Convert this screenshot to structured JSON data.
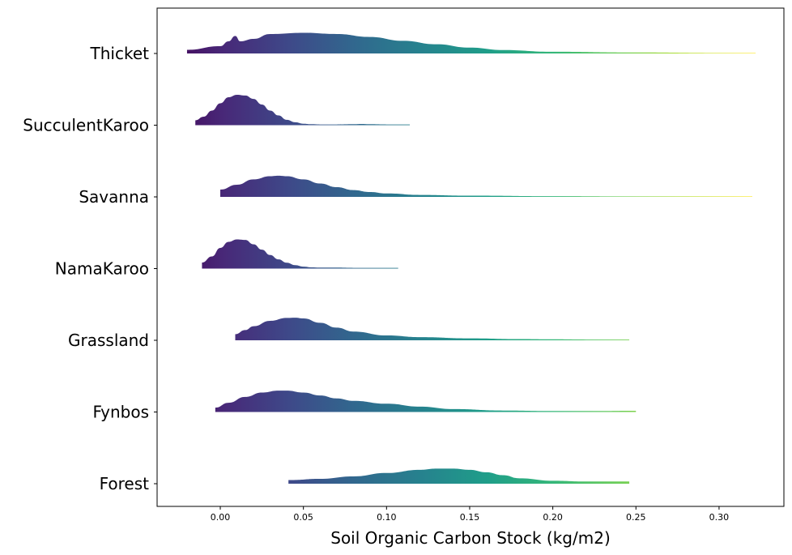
{
  "chart_data": {
    "type": "ridgeline",
    "xlabel": "Soil Organic Carbon Stock (kg/m2)",
    "xlim": [
      -0.038,
      0.339
    ],
    "x_ticks": [
      0.0,
      0.05,
      0.1,
      0.15,
      0.2,
      0.25,
      0.3
    ],
    "x_tick_labels": [
      "0.00",
      "0.05",
      "0.10",
      "0.15",
      "0.20",
      "0.25",
      "0.30"
    ],
    "categories": [
      "Thicket",
      "SucculentKaroo",
      "Savanna",
      "NamaKaroo",
      "Grassland",
      "Fynbos",
      "Forest"
    ],
    "colormap": "viridis",
    "grid": false,
    "legend": "none",
    "series": [
      {
        "name": "Thicket",
        "range": [
          -0.02,
          0.322
        ],
        "x": [
          -0.02,
          0.0,
          0.005,
          0.009,
          0.012,
          0.02,
          0.03,
          0.05,
          0.07,
          0.09,
          0.11,
          0.13,
          0.15,
          0.17,
          0.2,
          0.25,
          0.3,
          0.322
        ],
        "density": [
          0.15,
          0.3,
          0.5,
          0.72,
          0.5,
          0.6,
          0.8,
          0.85,
          0.8,
          0.68,
          0.52,
          0.38,
          0.24,
          0.14,
          0.07,
          0.04,
          0.02,
          0.02
        ]
      },
      {
        "name": "SucculentKaroo",
        "range": [
          -0.015,
          0.114
        ],
        "x": [
          -0.015,
          -0.01,
          -0.005,
          0.0,
          0.005,
          0.01,
          0.015,
          0.02,
          0.025,
          0.03,
          0.035,
          0.04,
          0.045,
          0.05,
          0.055,
          0.06,
          0.07,
          0.08,
          0.085,
          0.09,
          0.1,
          0.114
        ],
        "density": [
          0.2,
          0.35,
          0.6,
          0.9,
          1.15,
          1.25,
          1.22,
          1.08,
          0.85,
          0.6,
          0.4,
          0.22,
          0.12,
          0.06,
          0.04,
          0.03,
          0.03,
          0.04,
          0.05,
          0.04,
          0.03,
          0.03
        ]
      },
      {
        "name": "Savanna",
        "range": [
          0.0,
          0.32
        ],
        "x": [
          0.0,
          0.01,
          0.02,
          0.03,
          0.035,
          0.04,
          0.05,
          0.06,
          0.07,
          0.08,
          0.09,
          0.1,
          0.12,
          0.15,
          0.2,
          0.25,
          0.3,
          0.32
        ],
        "density": [
          0.3,
          0.5,
          0.72,
          0.85,
          0.87,
          0.85,
          0.72,
          0.55,
          0.4,
          0.28,
          0.2,
          0.14,
          0.08,
          0.05,
          0.03,
          0.02,
          0.02,
          0.02
        ]
      },
      {
        "name": "NamaKaroo",
        "range": [
          -0.011,
          0.107
        ],
        "x": [
          -0.011,
          -0.005,
          0.0,
          0.005,
          0.01,
          0.015,
          0.02,
          0.025,
          0.03,
          0.035,
          0.04,
          0.045,
          0.05,
          0.055,
          0.06,
          0.07,
          0.08,
          0.09,
          0.1,
          0.107
        ],
        "density": [
          0.25,
          0.5,
          0.85,
          1.1,
          1.2,
          1.18,
          1.0,
          0.78,
          0.56,
          0.38,
          0.24,
          0.14,
          0.08,
          0.05,
          0.04,
          0.04,
          0.03,
          0.03,
          0.03,
          0.03
        ]
      },
      {
        "name": "Grassland",
        "range": [
          0.009,
          0.246
        ],
        "x": [
          0.009,
          0.015,
          0.02,
          0.03,
          0.04,
          0.045,
          0.05,
          0.06,
          0.07,
          0.08,
          0.1,
          0.12,
          0.15,
          0.18,
          0.2,
          0.22,
          0.246
        ],
        "density": [
          0.25,
          0.42,
          0.58,
          0.8,
          0.92,
          0.93,
          0.9,
          0.72,
          0.52,
          0.36,
          0.2,
          0.13,
          0.08,
          0.05,
          0.04,
          0.03,
          0.03
        ]
      },
      {
        "name": "Fynbos",
        "range": [
          -0.003,
          0.25
        ],
        "x": [
          -0.003,
          0.005,
          0.015,
          0.025,
          0.035,
          0.04,
          0.05,
          0.06,
          0.07,
          0.08,
          0.1,
          0.12,
          0.14,
          0.17,
          0.2,
          0.22,
          0.25
        ],
        "density": [
          0.18,
          0.38,
          0.62,
          0.8,
          0.88,
          0.88,
          0.8,
          0.68,
          0.56,
          0.46,
          0.34,
          0.22,
          0.12,
          0.06,
          0.04,
          0.04,
          0.05
        ]
      },
      {
        "name": "Forest",
        "range": [
          0.041,
          0.246
        ],
        "x": [
          0.041,
          0.06,
          0.08,
          0.1,
          0.12,
          0.13,
          0.14,
          0.15,
          0.16,
          0.17,
          0.18,
          0.2,
          0.22,
          0.246
        ],
        "density": [
          0.15,
          0.2,
          0.3,
          0.44,
          0.57,
          0.62,
          0.62,
          0.57,
          0.47,
          0.35,
          0.22,
          0.12,
          0.09,
          0.09
        ]
      }
    ]
  }
}
